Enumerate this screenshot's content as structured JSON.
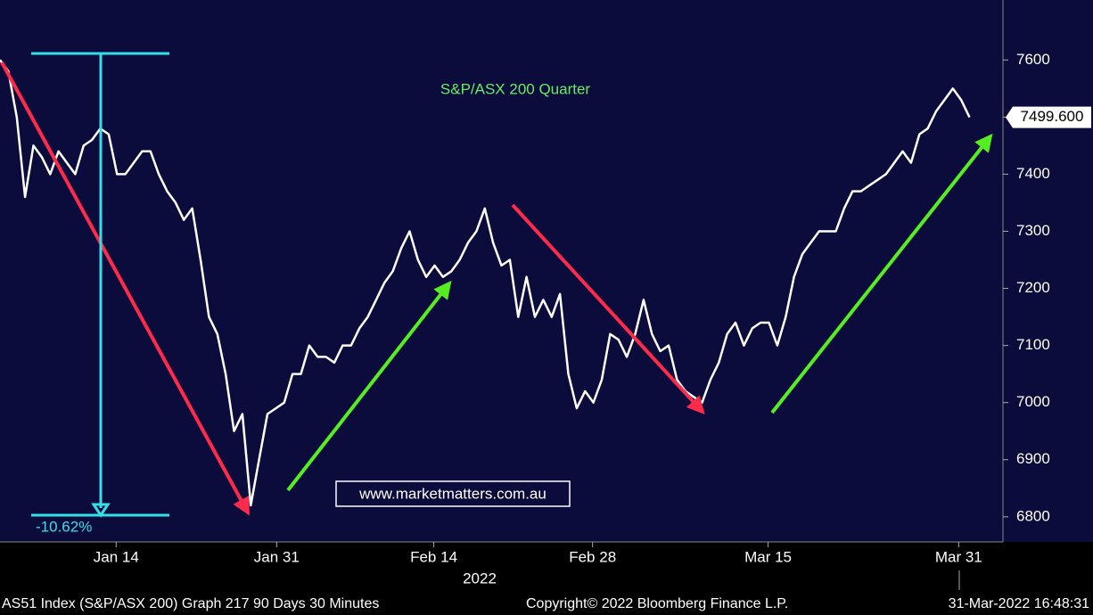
{
  "chart_data": {
    "type": "line",
    "title": "S&P/ASX 200 Quarter",
    "watermark": "www.marketmatters.com.au",
    "annotation": "-10.62%",
    "year_label": "2022",
    "footer": [
      "AS51 Index (S&P/ASX 200) Graph 217 90 Days 30 Minutes",
      "Copyright© 2022 Bloomberg Finance L.P.",
      "31-Mar-2022 16:48:31"
    ],
    "color": "#ffffff",
    "values": [
      7600,
      7580,
      7500,
      7360,
      7450,
      7430,
      7400,
      7440,
      7420,
      7400,
      7450,
      7460,
      7480,
      7470,
      7400,
      7400,
      7420,
      7440,
      7440,
      7400,
      7370,
      7350,
      7320,
      7340,
      7250,
      7150,
      7120,
      7050,
      6950,
      6980,
      6820,
      6900,
      6980,
      6990,
      7000,
      7050,
      7050,
      7100,
      7080,
      7080,
      7070,
      7100,
      7100,
      7130,
      7150,
      7180,
      7210,
      7230,
      7270,
      7300,
      7250,
      7220,
      7240,
      7220,
      7230,
      7250,
      7280,
      7300,
      7340,
      7280,
      7240,
      7250,
      7150,
      7220,
      7150,
      7180,
      7150,
      7190,
      7050,
      6990,
      7020,
      7000,
      7040,
      7120,
      7110,
      7080,
      7120,
      7180,
      7120,
      7090,
      7100,
      7040,
      7020,
      7010,
      7000,
      7040,
      7070,
      7120,
      7140,
      7100,
      7130,
      7140,
      7140,
      7100,
      7150,
      7220,
      7260,
      7280,
      7300,
      7300,
      7300,
      7340,
      7370,
      7370,
      7380,
      7390,
      7400,
      7420,
      7440,
      7420,
      7470,
      7480,
      7510,
      7530,
      7550,
      7530,
      7499.6
    ],
    "last_value": {
      "value": 7499.6,
      "label": "7499.600"
    },
    "xlim": [
      0,
      120
    ],
    "xticks": [
      {
        "value": 13.9,
        "label": "Jan 14"
      },
      {
        "value": 33.1,
        "label": "Jan 31"
      },
      {
        "value": 51.9,
        "label": "Feb 14"
      },
      {
        "value": 70.9,
        "label": "Feb 28"
      },
      {
        "value": 91.9,
        "label": "Mar 15"
      },
      {
        "value": 114.7,
        "label": "Mar 31"
      }
    ],
    "ylim": [
      6756,
      7705
    ],
    "yticks": [
      6800,
      6900,
      7000,
      7100,
      7200,
      7300,
      7400,
      7500,
      7600
    ]
  }
}
